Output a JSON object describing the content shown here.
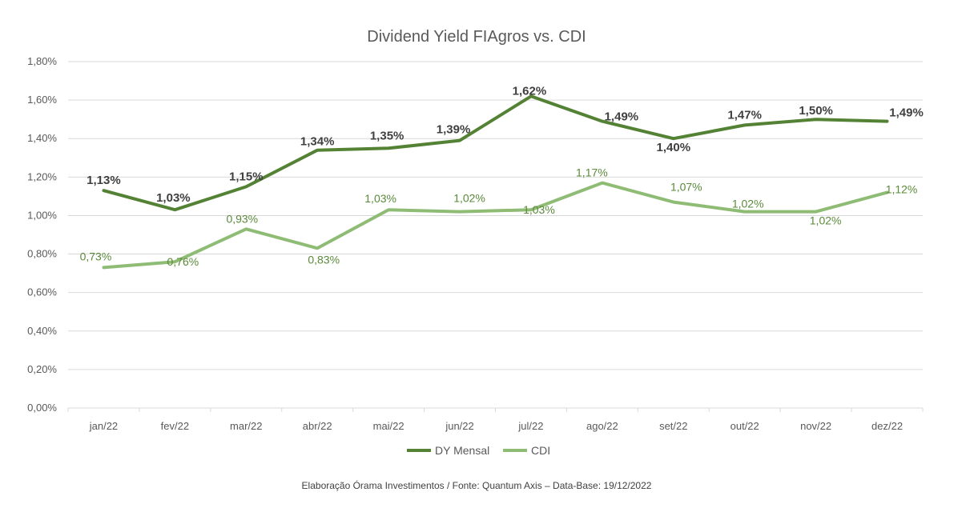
{
  "chart_data": {
    "type": "line",
    "title": "Dividend Yield FIAgros vs. CDI",
    "categories": [
      "jan/22",
      "fev/22",
      "mar/22",
      "abr/22",
      "mai/22",
      "jun/22",
      "jul/22",
      "ago/22",
      "set/22",
      "out/22",
      "nov/22",
      "dez/22"
    ],
    "ylim": [
      0,
      1.8
    ],
    "yticks": [
      "0,00%",
      "0,20%",
      "0,40%",
      "0,60%",
      "0,80%",
      "1,00%",
      "1,20%",
      "1,40%",
      "1,60%",
      "1,80%"
    ],
    "series": [
      {
        "name": "DY Mensal",
        "color": "#548235",
        "values": [
          1.13,
          1.03,
          1.15,
          1.34,
          1.35,
          1.39,
          1.62,
          1.49,
          1.4,
          1.47,
          1.5,
          1.49
        ],
        "labels": [
          "1,13%",
          "1,03%",
          "1,15%",
          "1,34%",
          "1,35%",
          "1,39%",
          "1,62%",
          "1,49%",
          "1,40%",
          "1,47%",
          "1,50%",
          "1,49%"
        ]
      },
      {
        "name": "CDI",
        "color": "#8fbc74",
        "values": [
          0.73,
          0.76,
          0.93,
          0.83,
          1.03,
          1.02,
          1.03,
          1.17,
          1.07,
          1.02,
          1.02,
          1.12
        ],
        "labels": [
          "0,73%",
          "0,76%",
          "0,93%",
          "0,83%",
          "1,03%",
          "1,02%",
          "1,03%",
          "1,17%",
          "1,07%",
          "1,02%",
          "1,02%",
          "1,12%"
        ]
      }
    ],
    "legend_position": "bottom",
    "grid": true
  },
  "source_note": "Elaboração Órama Investimentos / Fonte: Quantum Axis – Data-Base: 19/12/2022"
}
